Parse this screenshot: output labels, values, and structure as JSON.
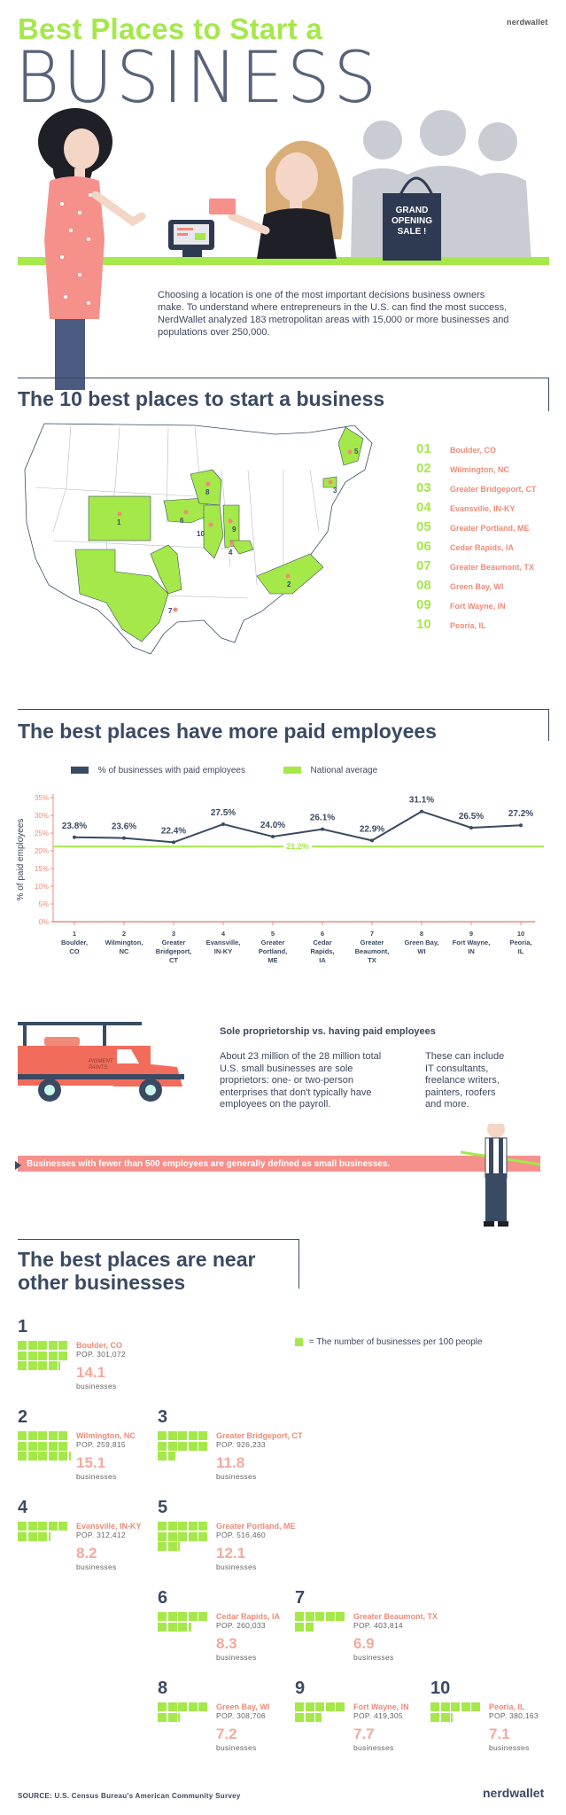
{
  "brand": "nerdwallet",
  "header": {
    "title_line1": "Best Places to Start a",
    "title_line2": "BUSINESS",
    "sign_text": "GRAND OPENING SALE !"
  },
  "intro": "Choosing a location is one of the most important decisions business owners make. To understand where entrepreneurs in the U.S. can find the most success, NerdWallet analyzed 183 metropolitan areas with 15,000 or more businesses and populations over 250,000.",
  "section1": {
    "title": "The 10 best places to start a business",
    "ranks": [
      {
        "num": "01",
        "city": "Boulder, CO"
      },
      {
        "num": "02",
        "city": "Wilmington, NC"
      },
      {
        "num": "03",
        "city": "Greater Bridgeport, CT"
      },
      {
        "num": "04",
        "city": "Evansville, IN-KY"
      },
      {
        "num": "05",
        "city": "Greater Portland, ME"
      },
      {
        "num": "06",
        "city": "Cedar Rapids, IA"
      },
      {
        "num": "07",
        "city": "Greater Beaumont, TX"
      },
      {
        "num": "08",
        "city": "Green Bay, WI"
      },
      {
        "num": "09",
        "city": "Fort Wayne, IN"
      },
      {
        "num": "10",
        "city": "Peoria, IL"
      }
    ],
    "map_labels": [
      "1",
      "2",
      "3",
      "4",
      "5",
      "6",
      "7",
      "8",
      "9",
      "10"
    ]
  },
  "section2": {
    "title": "The best places have more paid employees"
  },
  "chart_data": {
    "type": "line",
    "title": "The best places have more paid employees",
    "ylabel": "% of paid employees",
    "xlabel": "",
    "ylim": [
      0,
      35
    ],
    "yticks": [
      "0%",
      "5%",
      "10%",
      "15%",
      "20%",
      "25%",
      "30%",
      "35%"
    ],
    "categories": [
      [
        "1",
        "Boulder,",
        "CO"
      ],
      [
        "2",
        "Wilmington,",
        "NC"
      ],
      [
        "3",
        "Greater",
        "Bridgeport,",
        "CT"
      ],
      [
        "4",
        "Evansville,",
        "IN-KY"
      ],
      [
        "5",
        "Greater",
        "Portland,",
        "ME"
      ],
      [
        "6",
        "Cedar",
        "Rapids,",
        "IA"
      ],
      [
        "7",
        "Greater",
        "Beaumont,",
        "TX"
      ],
      [
        "8",
        "Green Bay,",
        "WI"
      ],
      [
        "9",
        "Fort Wayne,",
        "IN"
      ],
      [
        "10",
        "Peoria,",
        "IL"
      ]
    ],
    "series": [
      {
        "name": "% of businesses with paid employees",
        "color": "#3a4a63",
        "values": [
          23.8,
          23.6,
          22.4,
          27.5,
          24.0,
          26.1,
          22.9,
          31.1,
          26.5,
          27.2
        ],
        "labels": [
          "23.8%",
          "23.6%",
          "22.4%",
          "27.5%",
          "24.0%",
          "26.1%",
          "22.9%",
          "31.1%",
          "26.5%",
          "27.2%"
        ]
      },
      {
        "name": "National average",
        "color": "#a4e84a",
        "value": 21.2,
        "label": "21.2%"
      }
    ],
    "legend_position": "top",
    "grid": false
  },
  "truck": {
    "sign": "PIGMENT PAINTS",
    "heading": "Sole proprietorship vs. having paid employees",
    "col1": "About 23 million of the 28 million total U.S. small businesses are sole proprietors: one- or two-person enterprises that don't typically have employees on the payroll.",
    "col2": "These can include IT consultants, freelance writers, painters, roofers and more.",
    "banner": "Businesses with fewer than 500 employees are generally defined as small businesses."
  },
  "section3": {
    "title_line1": "The best places are near",
    "title_line2": "other businesses",
    "legend": "= The number of businesses per 100 people",
    "unit": "businesses",
    "cards": [
      {
        "num": "1",
        "city": "Boulder, CO",
        "pop": "POP. 301,072",
        "value": "14.1",
        "squares": 14.1
      },
      {
        "num": "2",
        "city": "Wilmington, NC",
        "pop": "POP. 259,815",
        "value": "15.1",
        "squares": 15.1
      },
      {
        "num": "3",
        "city": "Greater Bridgeport, CT",
        "pop": "POP. 926,233",
        "value": "11.8",
        "squares": 11.8
      },
      {
        "num": "4",
        "city": "Evansville, IN-KY",
        "pop": "POP. 312,412",
        "value": "8.2",
        "squares": 8.2
      },
      {
        "num": "5",
        "city": "Greater Portland, ME",
        "pop": "POP. 516,460",
        "value": "12.1",
        "squares": 12.1
      },
      {
        "num": "6",
        "city": "Cedar Rapids, IA",
        "pop": "POP. 260,033",
        "value": "8.3",
        "squares": 8.3
      },
      {
        "num": "7",
        "city": "Greater Beaumont, TX",
        "pop": "POP. 403,814",
        "value": "6.9",
        "squares": 6.9
      },
      {
        "num": "8",
        "city": "Green Bay, WI",
        "pop": "POP. 308,706",
        "value": "7.2",
        "squares": 7.2
      },
      {
        "num": "9",
        "city": "Fort Wayne, IN",
        "pop": "POP. 419,305",
        "value": "7.7",
        "squares": 7.7
      },
      {
        "num": "10",
        "city": "Peoria, IL",
        "pop": "POP. 380,163",
        "value": "7.1",
        "squares": 7.1
      }
    ]
  },
  "footer": {
    "source": "SOURCE: U.S. Census Bureau's American Community Survey",
    "brand": "nerdwallet"
  },
  "colors": {
    "green": "#a4e84a",
    "navy": "#3a4a63",
    "salmon": "#f08a78",
    "pink": "#f6908b"
  }
}
